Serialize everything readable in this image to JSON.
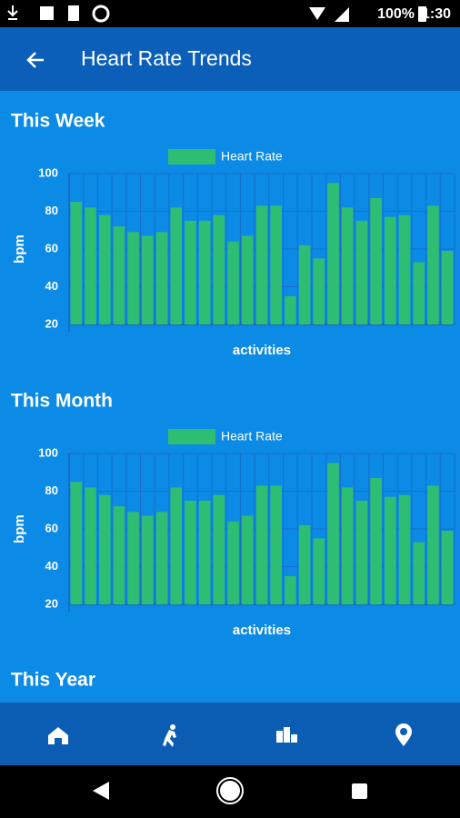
{
  "status_bar": {
    "battery": "100%",
    "time": "1:30"
  },
  "app_bar": {
    "title": "Heart Rate Trends"
  },
  "chart_data": [
    {
      "type": "bar",
      "title": "This Week",
      "xlabel": "activities",
      "ylabel": "bpm",
      "categories": [
        null,
        null,
        null,
        null,
        null,
        null,
        null,
        null,
        null,
        null,
        null,
        null,
        null,
        null,
        null,
        null,
        null,
        null,
        null,
        null,
        null,
        null,
        null,
        null,
        null,
        null,
        null
      ],
      "series": [
        {
          "name": "Heart Rate",
          "color": "#2dbe73",
          "values": [
            85,
            82,
            78,
            72,
            69,
            67,
            69,
            82,
            75,
            75,
            78,
            64,
            67,
            83,
            83,
            35,
            62,
            55,
            95,
            82,
            75,
            87,
            77,
            78,
            53,
            83,
            59
          ]
        }
      ],
      "ylim": [
        20,
        100
      ],
      "yticks": [
        20,
        40,
        60,
        80,
        100
      ],
      "grid": true,
      "legend": "top"
    },
    {
      "type": "bar",
      "title": "This Month",
      "xlabel": "activities",
      "ylabel": "bpm",
      "categories": [
        null,
        null,
        null,
        null,
        null,
        null,
        null,
        null,
        null,
        null,
        null,
        null,
        null,
        null,
        null,
        null,
        null,
        null,
        null,
        null,
        null,
        null,
        null,
        null,
        null,
        null,
        null
      ],
      "series": [
        {
          "name": "Heart Rate",
          "color": "#2dbe73",
          "values": [
            85,
            82,
            78,
            72,
            69,
            67,
            69,
            82,
            75,
            75,
            78,
            64,
            67,
            83,
            83,
            35,
            62,
            55,
            95,
            82,
            75,
            87,
            77,
            78,
            53,
            83,
            59
          ]
        }
      ],
      "ylim": [
        20,
        100
      ],
      "yticks": [
        20,
        40,
        60,
        80,
        100
      ],
      "grid": true,
      "legend": "top"
    }
  ],
  "next_section": {
    "title": "This Year"
  }
}
